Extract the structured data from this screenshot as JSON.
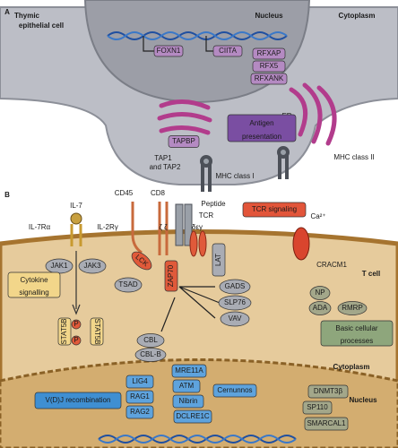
{
  "panel_a": {
    "label": "A",
    "cell": [
      "Thymic",
      "epithelial cell"
    ],
    "nucleus": "Nucleus",
    "cytoplasm": "Cytoplasm",
    "genes": [
      "FOXN1",
      "CIITA"
    ],
    "rfx": [
      "RFXAP",
      "RFX5",
      "RFXANK"
    ],
    "er": "ER",
    "tapbp": "TAPBP",
    "tap": [
      "TAP1",
      "and TAP2"
    ],
    "antigen": [
      "Antigen",
      "presentation"
    ],
    "mhc1": "MHC class I",
    "mhc2": "MHC class II"
  },
  "panel_b": {
    "label": "B",
    "cd45": "CD45",
    "cd8": "CD8",
    "peptide": "Peptide",
    "tcr": "TCR",
    "zeta": "ζ ζ",
    "deg": "δεγ",
    "il7": "IL-7",
    "il7ra": "IL-7Rα",
    "il2rg": "IL-2Rγ",
    "jak1": "JAK1",
    "jak3": "JAK3",
    "cytokine": [
      "Cytokine",
      "signalling"
    ],
    "stat": [
      "STAT5B",
      "STAT5B"
    ],
    "phospho": [
      "P",
      "P"
    ],
    "tcr_signaling": "TCR signaling",
    "calcium": "Ca²⁺",
    "cracm1": "CRACM1",
    "lck": "LCK",
    "tsad": "TSAD",
    "zap70": "ZAP70",
    "lat": "LAT",
    "adaptors": [
      "GADS",
      "SLP76",
      "VAV"
    ],
    "cbl": [
      "CBL",
      "CBL-B"
    ],
    "tcell": "T cell",
    "np": "NP",
    "ada": "ADA",
    "rmrp": "RMRP",
    "basic": [
      "Basic cellular",
      "processes"
    ],
    "cytoplasm": "Cytoplasm",
    "nucleus": "Nucleus",
    "vdj": "V(D)J recombination",
    "rag": [
      "LIG4",
      "RAG1",
      "RAG2"
    ],
    "repair": [
      "MRE11A",
      "ATM",
      "Nibrin",
      "DCLRE1C"
    ],
    "cernunnos": "Cernunnos",
    "other": [
      "DNMT3β",
      "SP110",
      "SMARCAL1"
    ]
  }
}
